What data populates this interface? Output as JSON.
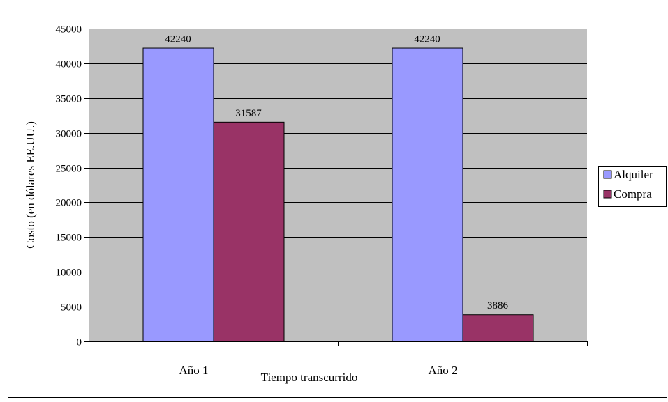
{
  "colors": {
    "plot_background": "#c0c0c0",
    "outer_border": "#000000",
    "grid": "#000000"
  },
  "chart_data": {
    "type": "bar",
    "title": "",
    "xlabel": "Tiempo transcurrido",
    "ylabel": "Costo (en dólares EE.UU.)",
    "categories": [
      "Año 1",
      "Año 2"
    ],
    "series": [
      {
        "name": "Alquiler",
        "color": "#9999ff",
        "values": [
          42240,
          42240
        ],
        "labels": [
          "42240",
          "42240"
        ]
      },
      {
        "name": "Compra",
        "color": "#993366",
        "values": [
          31587,
          3886
        ],
        "labels": [
          "31587",
          "3886"
        ]
      }
    ],
    "ylim": [
      0,
      45000
    ],
    "yticks": [
      0,
      5000,
      10000,
      15000,
      20000,
      25000,
      30000,
      35000,
      40000,
      45000
    ],
    "grid": true,
    "legend_position": "right"
  }
}
